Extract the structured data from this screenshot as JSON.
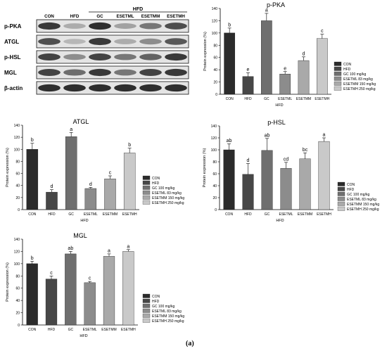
{
  "figure": {
    "panel_label": "(a)"
  },
  "blot": {
    "group_label": "HFD",
    "lanes": [
      "CON",
      "HFD",
      "GC",
      "ESETML",
      "ESETMM",
      "ESETMH"
    ],
    "proteins": [
      "p-PKA",
      "ATGL",
      "p-HSL",
      "MGL",
      "β-actin"
    ],
    "intensities": [
      [
        0.85,
        0.3,
        0.9,
        0.35,
        0.55,
        0.75
      ],
      [
        0.75,
        0.25,
        0.85,
        0.3,
        0.45,
        0.7
      ],
      [
        0.8,
        0.45,
        0.8,
        0.55,
        0.65,
        0.85
      ],
      [
        0.8,
        0.6,
        0.85,
        0.55,
        0.8,
        0.85
      ],
      [
        0.9,
        0.9,
        0.9,
        0.9,
        0.9,
        0.9
      ]
    ]
  },
  "legend_entries": [
    "CON",
    "HFD",
    "GC 100 mg/kg",
    "ESETML 83 mg/kg",
    "ESETMM 150 mg/kg",
    "ESETMH 250 mg/kg"
  ],
  "bar_colors": [
    "#2b2b2b",
    "#474747",
    "#6f6f6f",
    "#8c8c8c",
    "#a9a9a9",
    "#c9c9c9"
  ],
  "chart_data": [
    {
      "type": "bar",
      "title": "p-PKA",
      "categories": [
        "CON",
        "HFD",
        "GC",
        "ESETML",
        "ESETMM",
        "ESETMH"
      ],
      "values": [
        100,
        29,
        120,
        33,
        55,
        91
      ],
      "errors": [
        8,
        6,
        12,
        4,
        6,
        7
      ],
      "significance": [
        "b",
        "e",
        "a",
        "e",
        "d",
        "c"
      ],
      "xlabel": "HFD",
      "ylabel": "Protein expression (%)",
      "ylim": [
        0,
        140
      ],
      "yticks": [
        0,
        20,
        40,
        60,
        80,
        100,
        120,
        140
      ]
    },
    {
      "type": "bar",
      "title": "ATGL",
      "categories": [
        "CON",
        "HFD",
        "GC",
        "ESETML",
        "ESETMM",
        "ESETMH"
      ],
      "values": [
        100,
        29,
        121,
        35,
        51,
        94
      ],
      "errors": [
        10,
        4,
        7,
        2,
        5,
        8
      ],
      "significance": [
        "b",
        "d",
        "a",
        "d",
        "c",
        "b"
      ],
      "xlabel": "HFD",
      "ylabel": "Protein expression (%)",
      "ylim": [
        0,
        140
      ],
      "yticks": [
        0,
        20,
        40,
        60,
        80,
        100,
        120,
        140
      ]
    },
    {
      "type": "bar",
      "title": "p-HSL",
      "categories": [
        "CON",
        "HFD",
        "GC",
        "ESETML",
        "ESETMM",
        "ESETMH"
      ],
      "values": [
        100,
        59,
        99,
        69,
        85,
        114
      ],
      "errors": [
        10,
        18,
        20,
        10,
        10,
        6
      ],
      "significance": [
        "ab",
        "d",
        "ab",
        "cd",
        "bc",
        "a"
      ],
      "xlabel": "HFD",
      "ylabel": "Protein expression (%)",
      "ylim": [
        0,
        140
      ],
      "yticks": [
        0,
        20,
        40,
        60,
        80,
        100,
        120,
        140
      ]
    },
    {
      "type": "bar",
      "title": "MGL",
      "categories": [
        "CON",
        "HFD",
        "GC",
        "ESETML",
        "ESETMM",
        "ESETMH"
      ],
      "values": [
        100,
        75,
        116,
        69,
        112,
        120
      ],
      "errors": [
        4,
        5,
        4,
        2,
        4,
        3
      ],
      "significance": [
        "b",
        "c",
        "ab",
        "c",
        "a",
        "a"
      ],
      "xlabel": "HFD",
      "ylabel": "Protein expression (%)",
      "ylim": [
        0,
        140
      ],
      "yticks": [
        0,
        20,
        40,
        60,
        80,
        100,
        120,
        140
      ]
    }
  ]
}
